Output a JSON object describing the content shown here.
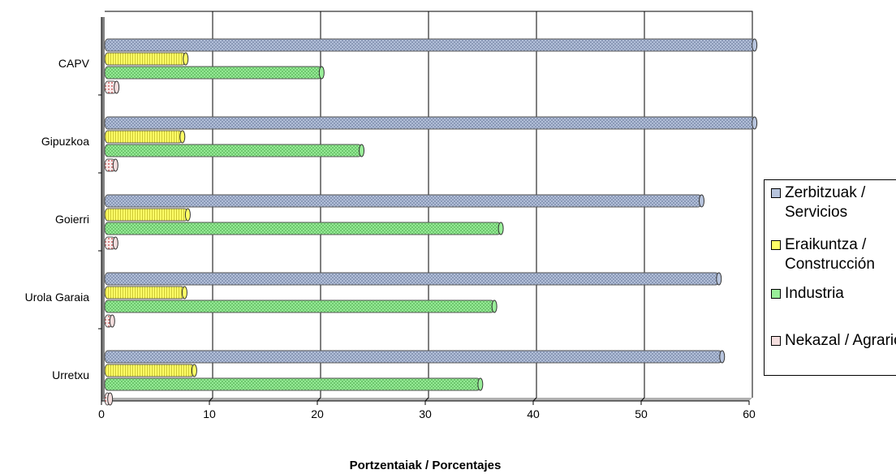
{
  "chart_data": {
    "type": "bar",
    "orientation": "horizontal",
    "title": "",
    "xlabel": "Portzentaiak / Porcentajes",
    "ylabel": "",
    "xlim": [
      0,
      60
    ],
    "xticks": [
      "0",
      "10",
      "20",
      "30",
      "40",
      "50",
      "60"
    ],
    "grid": true,
    "legend_position": "right",
    "categories": [
      "CAPV",
      "Gipuzkoa",
      "Goierri",
      "Urola Garaia",
      "Urretxu"
    ],
    "series": [
      {
        "name": "Zerbitzuak / Servicios",
        "color": "#b7c4dd",
        "values": [
          60.2,
          60.2,
          55.3,
          56.9,
          57.2
        ]
      },
      {
        "name": "Eraikuntza / Construcción",
        "color": "#ffff66",
        "values": [
          7.5,
          7.2,
          7.7,
          7.4,
          8.3
        ]
      },
      {
        "name": "Industria",
        "color": "#99ee99",
        "values": [
          20.1,
          23.8,
          36.7,
          36.1,
          34.8
        ]
      },
      {
        "name": "Nekazal / Agrario",
        "color": "#f4dede",
        "values": [
          1.1,
          1.0,
          1.0,
          0.7,
          0.5
        ]
      }
    ]
  }
}
